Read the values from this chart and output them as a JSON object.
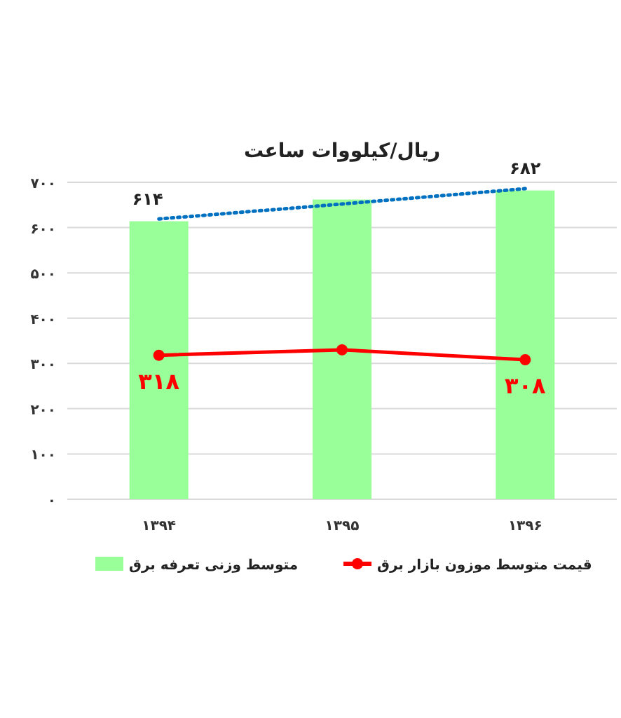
{
  "chart_data": {
    "type": "bar",
    "title": "ریال/کیلووات ساعت",
    "categories": [
      "۱۳۹۴",
      "۱۳۹۵",
      "۱۳۹۶"
    ],
    "series": [
      {
        "name": "متوسط وزنی تعرفه برق",
        "color": "#99ff99",
        "values": [
          614,
          662,
          682
        ],
        "value_labels": [
          "۶۱۴",
          null,
          "۶۸۲"
        ]
      },
      {
        "name": "قیمت متوسط موزون بازار برق",
        "type": "line",
        "color": "#ff0000",
        "marker": "circle",
        "line_style": "solid",
        "values": [
          318,
          330,
          308
        ],
        "value_labels": [
          "۳۱۸",
          null,
          "۳۰۸"
        ]
      },
      {
        "type": "line",
        "color": "#0070c0",
        "marker": "none",
        "line_style": "dotted",
        "values": [
          619,
          652,
          686
        ]
      }
    ],
    "ylim": [
      0,
      700
    ],
    "yticks": [
      {
        "value": 0,
        "label": "۰"
      },
      {
        "value": 100,
        "label": "۱۰۰"
      },
      {
        "value": 200,
        "label": "۲۰۰"
      },
      {
        "value": 300,
        "label": "۳۰۰"
      },
      {
        "value": 400,
        "label": "۴۰۰"
      },
      {
        "value": 500,
        "label": "۵۰۰"
      },
      {
        "value": 600,
        "label": "۶۰۰"
      },
      {
        "value": 700,
        "label": "۷۰۰"
      }
    ],
    "grid": "y",
    "legend": "bottom"
  }
}
